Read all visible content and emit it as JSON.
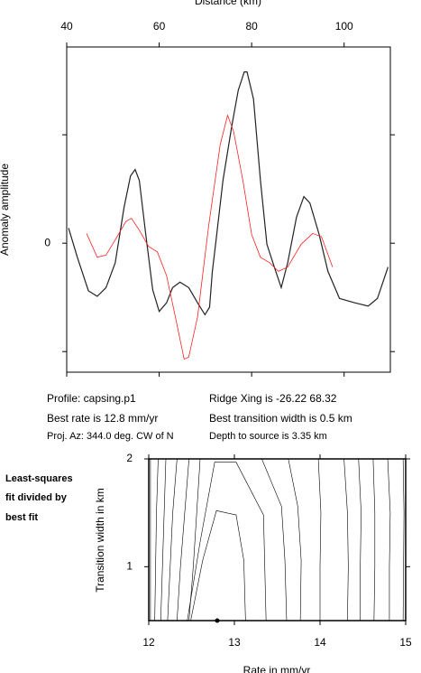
{
  "chart_data": [
    {
      "type": "line",
      "xlabel": "Distance (km)",
      "ylabel": "Anomaly amplitude",
      "xlim": [
        40,
        110
      ],
      "xticks": [
        40,
        60,
        80,
        100
      ],
      "ylim": [
        -119,
        181
      ],
      "yticks": [
        0
      ],
      "minor_yticks": [
        -100,
        100
      ],
      "series": [
        {
          "color": "#222222",
          "x": [
            40.4,
            42.3,
            44.7,
            46.6,
            48.5,
            50.5,
            52.4,
            53.8,
            54.8,
            55.7,
            57.1,
            58.6,
            60.0,
            61.6,
            62.9,
            64.5,
            66.4,
            68.3,
            69.9,
            70.9,
            71.5,
            72.2,
            73.8,
            75.7,
            77.1,
            78.4,
            79.0,
            80.4,
            81.9,
            83.3,
            84.9,
            86.4,
            87.8,
            89.7,
            91.3,
            92.6,
            94.6,
            96.5,
            99.0,
            102.3,
            105.2,
            107.2,
            109.5
          ],
          "values": [
            14,
            -13,
            -44,
            -49,
            -41,
            -18,
            33,
            62,
            68,
            58,
            8,
            -43,
            -63,
            -55,
            -41,
            -36,
            -41,
            -55,
            -66,
            -59,
            -26,
            -1,
            58,
            108,
            141,
            158,
            158,
            133,
            58,
            -1,
            -22,
            -41,
            -18,
            24,
            43,
            37,
            8,
            -26,
            -51,
            -55,
            -58,
            -51,
            -22
          ]
        },
        {
          "color": "#ff2020",
          "x": [
            44.3,
            46.6,
            48.5,
            50.9,
            52.8,
            54.0,
            55.7,
            57.7,
            59.6,
            61.6,
            63.5,
            65.4,
            66.4,
            68.3,
            70.7,
            73.2,
            74.8,
            76.1,
            78.1,
            80.0,
            81.9,
            83.9,
            85.8,
            87.8,
            90.7,
            93.2,
            95.1,
            97.5
          ],
          "values": [
            9,
            -13,
            -11,
            6,
            20,
            23,
            12,
            -3,
            -8,
            -30,
            -68,
            -107,
            -105,
            -68,
            16,
            91,
            118,
            103,
            58,
            8,
            -13,
            -18,
            -26,
            -22,
            -1,
            9,
            6,
            -22
          ]
        }
      ],
      "annotations": [
        "Profile: capsing.p1",
        "Ridge Xing is -26.22 68.32",
        "Best rate is 12.8 mm/yr",
        "Best transition width is 0.5 km",
        "Proj. Az: 344.0 deg. CW of N",
        "Depth to source is   3.35 km"
      ]
    },
    {
      "type": "contour",
      "xlabel": "Rate in mm/yr",
      "ylabel": "Transition width in km",
      "xlim": [
        12,
        15
      ],
      "xticks": [
        12,
        13,
        14,
        15
      ],
      "ylim": [
        0.5,
        2
      ],
      "yticks": [
        1,
        2
      ],
      "annotations": [
        "Least-squares",
        "fit divided by",
        "best fit"
      ],
      "best_fit": {
        "x": 12.8,
        "y": 0.5
      },
      "lines": [
        {
          "x": [
            12.02,
            12.02,
            12.02,
            12.02
          ],
          "y": [
            0.5,
            1,
            1.5,
            2
          ]
        },
        {
          "x": [
            12.07,
            12.08,
            12.09,
            12.11
          ],
          "y": [
            0.5,
            1,
            1.5,
            2
          ]
        },
        {
          "x": [
            12.14,
            12.16,
            12.18,
            12.2
          ],
          "y": [
            0.5,
            1,
            1.5,
            2
          ]
        },
        {
          "x": [
            12.22,
            12.25,
            12.28,
            12.33
          ],
          "y": [
            0.5,
            1,
            1.5,
            2
          ]
        },
        {
          "x": [
            12.33,
            12.37,
            12.42,
            12.47
          ],
          "y": [
            0.5,
            1,
            1.5,
            2
          ]
        },
        {
          "x": [
            12.47,
            12.52,
            12.56,
            12.6
          ],
          "y": [
            0.5,
            1,
            1.5,
            2
          ]
        },
        {
          "x": [
            12.49,
            12.63,
            12.79,
            13.02,
            13.11,
            13.13
          ],
          "y": [
            0.5,
            1.06,
            1.52,
            1.48,
            1.06,
            0.5
          ]
        },
        {
          "x": [
            12.45,
            12.6,
            12.77,
            13.02,
            13.34,
            13.37
          ],
          "y": [
            0.5,
            1.23,
            1.97,
            1.97,
            1.48,
            0.5
          ]
        },
        {
          "x": [
            13.61,
            13.59,
            13.55,
            13.32
          ],
          "y": [
            0.5,
            1.06,
            1.56,
            2
          ]
        },
        {
          "x": [
            13.77,
            13.78,
            13.74,
            13.63
          ],
          "y": [
            0.5,
            1.06,
            1.56,
            2
          ]
        },
        {
          "x": [
            14.0,
            14.0,
            14.01,
            13.98
          ],
          "y": [
            0.5,
            1,
            1.5,
            2
          ]
        },
        {
          "x": [
            14.32,
            14.33,
            14.32,
            14.28
          ],
          "y": [
            0.5,
            1,
            1.5,
            2
          ]
        },
        {
          "x": [
            14.47,
            14.47,
            14.48,
            14.45
          ],
          "y": [
            0.5,
            1,
            1.5,
            2
          ]
        },
        {
          "x": [
            14.63,
            14.64,
            14.64,
            14.62
          ],
          "y": [
            0.5,
            1,
            1.5,
            2
          ]
        },
        {
          "x": [
            14.81,
            14.81,
            14.82,
            14.79
          ],
          "y": [
            0.5,
            1,
            1.5,
            2
          ]
        },
        {
          "x": [
            14.97,
            14.98,
            14.97
          ],
          "y": [
            0.5,
            1.5,
            2
          ]
        }
      ]
    }
  ]
}
